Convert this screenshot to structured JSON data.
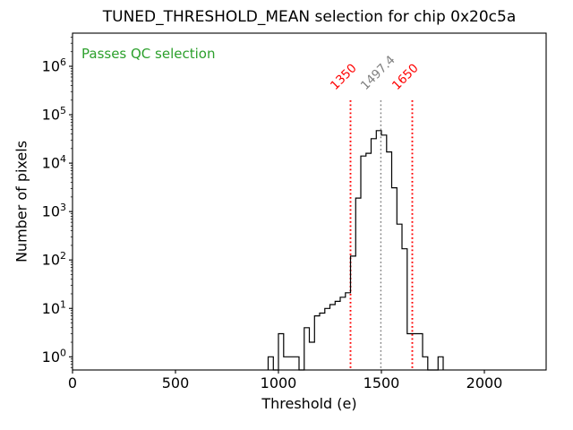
{
  "title": "TUNED_THRESHOLD_MEAN selection for chip 0x20c5a",
  "annotation": {
    "text": "Passes QC selection",
    "color": "#2ca02c"
  },
  "colors": {
    "histogram_line": "#000000",
    "threshold_line": "#ff0000",
    "mean_line": "#808080",
    "axis": "#000000",
    "background": "#ffffff"
  },
  "chart_data": {
    "type": "bar",
    "subtype": "histogram_step",
    "title": "TUNED_THRESHOLD_MEAN selection for chip 0x20c5a",
    "xlabel": "Threshold (e)",
    "ylabel": "Number of pixels",
    "grid": false,
    "x_axis": {
      "label": "Threshold (e)",
      "min": 0,
      "max": 2300,
      "ticks": [
        0,
        500,
        1000,
        1500,
        2000
      ]
    },
    "y_axis": {
      "label": "Number of pixels",
      "scale": "log",
      "tick_exponents": [
        0,
        1,
        2,
        3,
        4,
        5,
        6
      ],
      "ylim": [
        0.53,
        4800000
      ]
    },
    "histogram": {
      "bin_start": 950,
      "bin_width": 25,
      "counts": [
        1,
        0,
        3,
        1,
        1,
        1,
        0,
        4,
        2,
        7,
        8,
        10,
        12,
        14,
        17,
        21,
        120,
        1900,
        14000,
        16000,
        32000,
        47000,
        38000,
        17000,
        3100,
        550,
        170,
        3,
        3,
        3,
        1,
        0,
        0,
        1
      ]
    },
    "vlines": [
      {
        "value": 1350,
        "label": "1350",
        "color": "#ff0000",
        "style": "dotted"
      },
      {
        "value": 1497.4,
        "label": "1497.4",
        "color": "#808080",
        "style": "dotted"
      },
      {
        "value": 1650,
        "label": "1650",
        "color": "#ff0000",
        "style": "dotted"
      }
    ]
  }
}
